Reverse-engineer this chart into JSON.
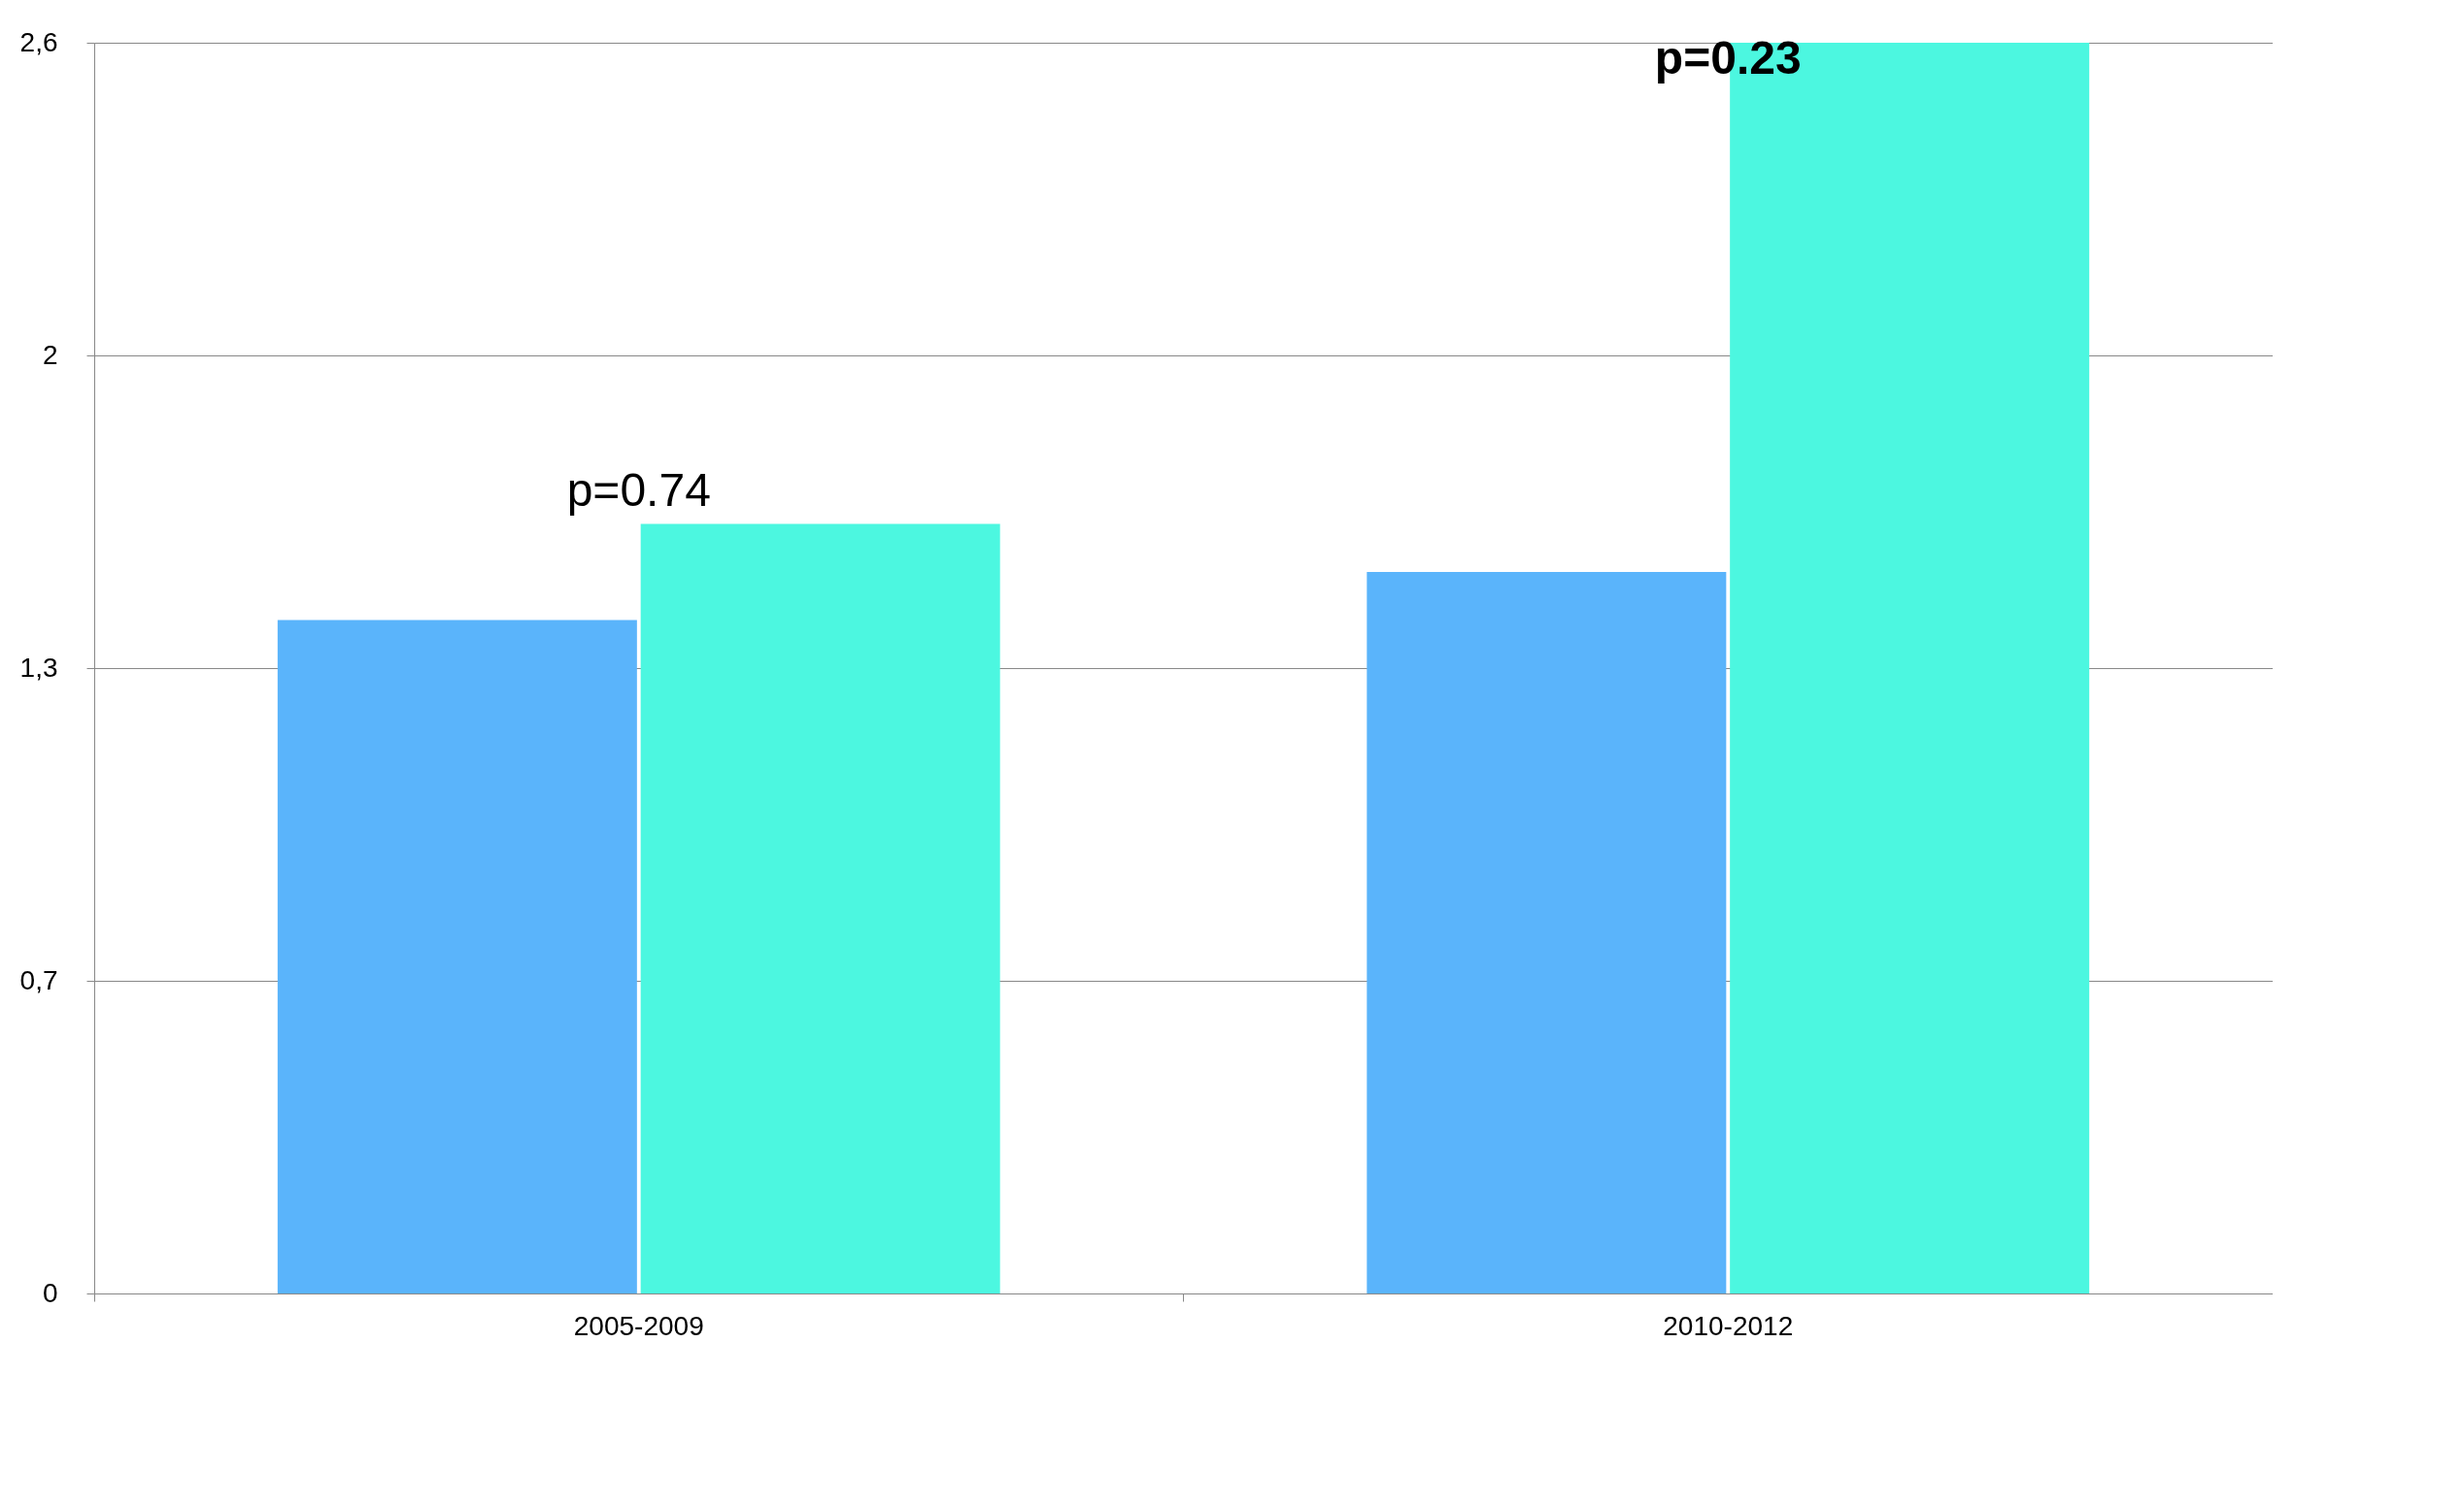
{
  "chart_data": {
    "type": "bar",
    "categories": [
      "2005-2009",
      "2010-2012"
    ],
    "series": [
      {
        "color": "#5ab4fb",
        "values": [
          1.4,
          1.5
        ]
      },
      {
        "color": "#4cf7e0",
        "values": [
          1.6,
          2.6
        ]
      }
    ],
    "ylim": [
      0,
      2.6
    ],
    "yticks": [
      0,
      {
        "value": 0.65,
        "label": "0,7"
      },
      {
        "value": 1.3,
        "label": "1,3"
      },
      {
        "value": 1.95,
        "label": "2"
      },
      {
        "value": 2.6,
        "label": "2,6"
      }
    ],
    "grid": "y",
    "legend": false,
    "annotations": [
      {
        "text": "p=0.74",
        "x": "2005-2009",
        "y": 1.6
      },
      {
        "text": "p=0.23",
        "x": "2010-2012",
        "y": 2.5
      }
    ]
  }
}
